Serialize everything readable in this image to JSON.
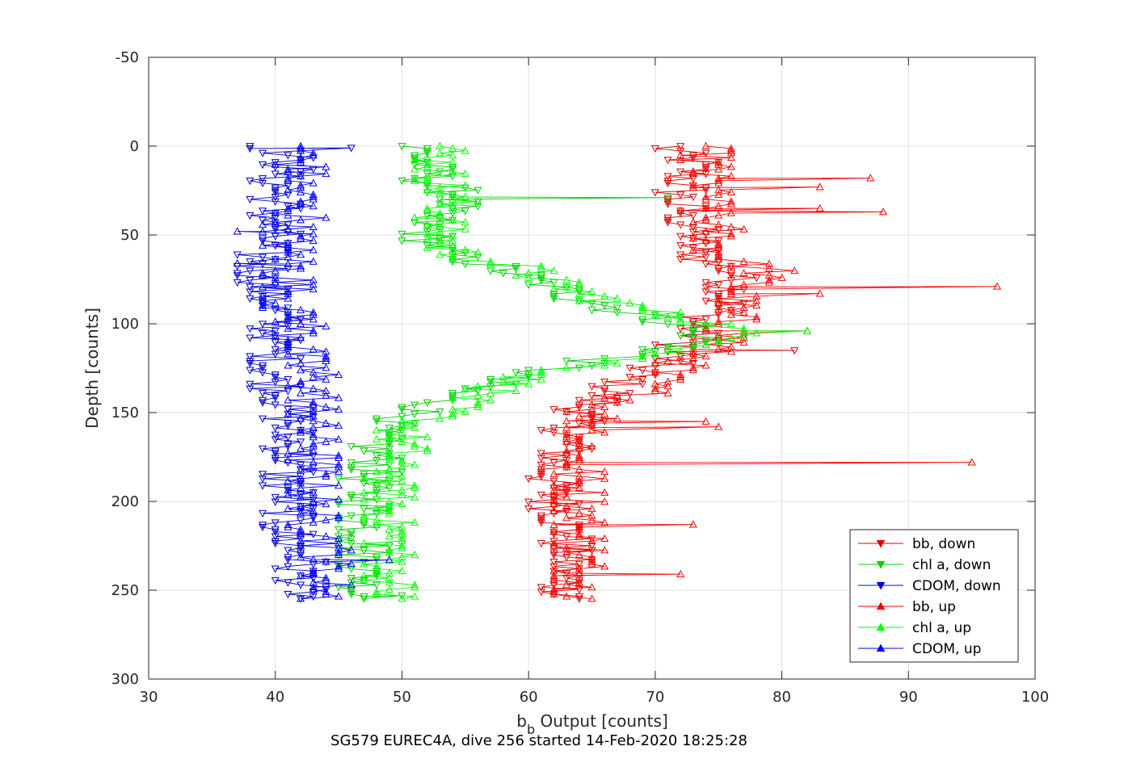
{
  "chart_data": {
    "type": "line",
    "xlabel": "b",
    "xlabel_sub": "b",
    "xlabel_rest": " Output [counts]",
    "ylabel": "Depth [counts]",
    "caption": "SG579 EUREC4A, dive 256 started 14-Feb-2020 18:25:28",
    "xlim": [
      30,
      100
    ],
    "ylim": [
      -50,
      300
    ],
    "y_reversed": true,
    "grid": true,
    "x_ticks": [
      "30",
      "40",
      "50",
      "60",
      "70",
      "80",
      "90",
      "100"
    ],
    "y_ticks": [
      "-50",
      "0",
      "50",
      "100",
      "150",
      "200",
      "250",
      "300"
    ],
    "legend_position": "bottom-right",
    "series": [
      {
        "name": "bb, down",
        "color": "#e00000",
        "marker": "triangle-down",
        "profile": [
          [
            0,
            71
          ],
          [
            10,
            73
          ],
          [
            20,
            72
          ],
          [
            30,
            72
          ],
          [
            40,
            72
          ],
          [
            50,
            73
          ],
          [
            60,
            73
          ],
          [
            70,
            76
          ],
          [
            80,
            76
          ],
          [
            90,
            75
          ],
          [
            100,
            73
          ],
          [
            110,
            73
          ],
          [
            120,
            71
          ],
          [
            130,
            68
          ],
          [
            140,
            66
          ],
          [
            150,
            64
          ],
          [
            160,
            63
          ],
          [
            170,
            63
          ],
          [
            180,
            62
          ],
          [
            190,
            62
          ],
          [
            200,
            62
          ],
          [
            210,
            63
          ],
          [
            220,
            63
          ],
          [
            230,
            63
          ],
          [
            240,
            63
          ],
          [
            250,
            63
          ],
          [
            255,
            64
          ]
        ]
      },
      {
        "name": "chl a, down",
        "color": "#00d000",
        "marker": "triangle-down",
        "profile": [
          [
            0,
            51
          ],
          [
            10,
            52
          ],
          [
            20,
            52
          ],
          [
            30,
            55
          ],
          [
            40,
            52
          ],
          [
            50,
            52
          ],
          [
            60,
            53
          ],
          [
            70,
            58
          ],
          [
            80,
            62
          ],
          [
            90,
            66
          ],
          [
            100,
            72
          ],
          [
            110,
            74
          ],
          [
            120,
            66
          ],
          [
            130,
            58
          ],
          [
            140,
            54
          ],
          [
            150,
            51
          ],
          [
            160,
            48
          ],
          [
            170,
            48
          ],
          [
            180,
            48
          ],
          [
            190,
            47
          ],
          [
            200,
            47
          ],
          [
            210,
            47
          ],
          [
            220,
            47
          ],
          [
            230,
            47
          ],
          [
            240,
            47
          ],
          [
            250,
            47
          ],
          [
            255,
            47
          ]
        ]
      },
      {
        "name": "CDOM, down",
        "color": "#0000d0",
        "marker": "triangle-down",
        "profile": [
          [
            0,
            40
          ],
          [
            10,
            41
          ],
          [
            20,
            40
          ],
          [
            30,
            40
          ],
          [
            40,
            40
          ],
          [
            50,
            40
          ],
          [
            60,
            39
          ],
          [
            70,
            39
          ],
          [
            80,
            39
          ],
          [
            90,
            40
          ],
          [
            100,
            40
          ],
          [
            110,
            40
          ],
          [
            120,
            40
          ],
          [
            130,
            40
          ],
          [
            140,
            41
          ],
          [
            150,
            41
          ],
          [
            160,
            41
          ],
          [
            170,
            41
          ],
          [
            180,
            41
          ],
          [
            190,
            41
          ],
          [
            200,
            41
          ],
          [
            210,
            41
          ],
          [
            220,
            41
          ],
          [
            230,
            42
          ],
          [
            240,
            42
          ],
          [
            250,
            42
          ],
          [
            255,
            42
          ]
        ]
      },
      {
        "name": "bb, up",
        "color": "#ff0000",
        "marker": "triangle-up",
        "profile": [
          [
            0,
            74
          ],
          [
            10,
            74
          ],
          [
            20,
            74
          ],
          [
            30,
            74
          ],
          [
            40,
            74
          ],
          [
            50,
            75
          ],
          [
            60,
            75
          ],
          [
            70,
            79
          ],
          [
            80,
            77
          ],
          [
            90,
            76
          ],
          [
            100,
            76
          ],
          [
            110,
            76
          ],
          [
            120,
            73
          ],
          [
            130,
            70
          ],
          [
            140,
            69
          ],
          [
            150,
            65
          ],
          [
            160,
            65
          ],
          [
            170,
            64
          ],
          [
            180,
            64
          ],
          [
            190,
            64
          ],
          [
            200,
            64
          ],
          [
            210,
            64
          ],
          [
            220,
            64
          ],
          [
            230,
            64
          ],
          [
            240,
            64
          ],
          [
            250,
            64
          ],
          [
            255,
            65
          ]
        ]
      },
      {
        "name": "chl a, up",
        "color": "#00ff00",
        "marker": "triangle-up",
        "profile": [
          [
            0,
            53
          ],
          [
            10,
            53
          ],
          [
            20,
            53
          ],
          [
            30,
            54
          ],
          [
            40,
            53
          ],
          [
            50,
            53
          ],
          [
            60,
            54
          ],
          [
            70,
            60
          ],
          [
            80,
            63
          ],
          [
            90,
            68
          ],
          [
            100,
            75
          ],
          [
            110,
            77
          ],
          [
            120,
            68
          ],
          [
            130,
            60
          ],
          [
            140,
            56
          ],
          [
            150,
            53
          ],
          [
            160,
            50
          ],
          [
            170,
            50
          ],
          [
            180,
            49
          ],
          [
            190,
            49
          ],
          [
            200,
            49
          ],
          [
            210,
            49
          ],
          [
            220,
            49
          ],
          [
            230,
            49
          ],
          [
            240,
            49
          ],
          [
            250,
            49
          ],
          [
            255,
            49
          ]
        ]
      },
      {
        "name": "CDOM, up",
        "color": "#0000ff",
        "marker": "triangle-up",
        "profile": [
          [
            0,
            42
          ],
          [
            10,
            42
          ],
          [
            20,
            42
          ],
          [
            30,
            42
          ],
          [
            40,
            42
          ],
          [
            50,
            41
          ],
          [
            60,
            41
          ],
          [
            70,
            41
          ],
          [
            80,
            41
          ],
          [
            90,
            41
          ],
          [
            100,
            42
          ],
          [
            110,
            42
          ],
          [
            120,
            42
          ],
          [
            130,
            43
          ],
          [
            140,
            43
          ],
          [
            150,
            43
          ],
          [
            160,
            43
          ],
          [
            170,
            43
          ],
          [
            180,
            43
          ],
          [
            190,
            43
          ],
          [
            200,
            43
          ],
          [
            210,
            43
          ],
          [
            220,
            44
          ],
          [
            230,
            44
          ],
          [
            240,
            44
          ],
          [
            250,
            44
          ],
          [
            255,
            44
          ]
        ]
      }
    ],
    "spikes": [
      {
        "series": "bb, up",
        "depth": 18,
        "value": 87
      },
      {
        "series": "bb, up",
        "depth": 23,
        "value": 83
      },
      {
        "series": "bb, up",
        "depth": 37,
        "value": 88
      },
      {
        "series": "bb, up",
        "depth": 35,
        "value": 83
      },
      {
        "series": "bb, up",
        "depth": 79,
        "value": 97
      },
      {
        "series": "bb, up",
        "depth": 83,
        "value": 83
      },
      {
        "series": "bb, up",
        "depth": 104,
        "value": 82
      },
      {
        "series": "bb, down",
        "depth": 115,
        "value": 81
      },
      {
        "series": "bb, up",
        "depth": 155,
        "value": 74
      },
      {
        "series": "bb, up",
        "depth": 158,
        "value": 75
      },
      {
        "series": "bb, up",
        "depth": 178,
        "value": 95
      },
      {
        "series": "bb, up",
        "depth": 213,
        "value": 73
      },
      {
        "series": "bb, up",
        "depth": 241,
        "value": 72
      },
      {
        "series": "chl a, down",
        "depth": 29,
        "value": 71
      },
      {
        "series": "chl a, up",
        "depth": 104,
        "value": 82
      },
      {
        "series": "chl a, down",
        "depth": 253,
        "value": 50
      },
      {
        "series": "CDOM, down",
        "depth": 1,
        "value": 46
      },
      {
        "series": "CDOM, up",
        "depth": 233,
        "value": 49
      },
      {
        "series": "CDOM, up",
        "depth": 66,
        "value": 37
      },
      {
        "series": "CDOM, up",
        "depth": 48,
        "value": 37
      }
    ]
  }
}
